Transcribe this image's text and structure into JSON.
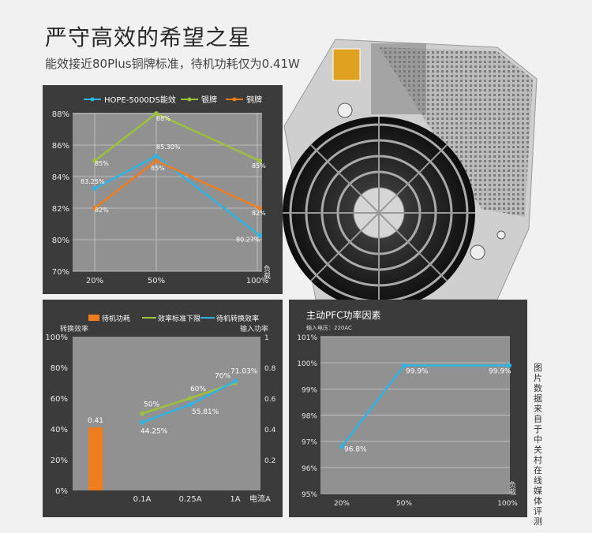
{
  "header": {
    "title": "严守高效的希望之星",
    "subtitle": "能效接近80Plus铜牌标准，待机功耗仅为0.41W"
  },
  "source_note": "图片数据来自于中关村在线媒体评测",
  "colors": {
    "blue": "#2fb4e6",
    "green": "#9cc13a",
    "orange": "#ef7d1e",
    "plot_bg": "#919191",
    "panel_bg": "#3b3b3b"
  },
  "chart_data": [
    {
      "type": "line",
      "categories": [
        "20%",
        "50%",
        "100%"
      ],
      "x_axis_unit": "负载",
      "ylim": [
        70,
        88
      ],
      "y_ticks": [
        "70%",
        "80%",
        "82%",
        "84%",
        "86%",
        "88%"
      ],
      "series": [
        {
          "name": "HOPE-5000DS能效",
          "color": "#2fb4e6",
          "values": [
            83.25,
            85.3,
            80.27
          ],
          "labels": [
            "83.25%",
            "85.30%",
            "80.27%"
          ]
        },
        {
          "name": "银牌",
          "color": "#9cc13a",
          "values": [
            85,
            88,
            85
          ],
          "labels": [
            "85%",
            "88%",
            "85%"
          ]
        },
        {
          "name": "铜牌",
          "color": "#ef7d1e",
          "values": [
            82,
            85,
            82
          ],
          "labels": [
            "82%",
            "85%",
            "82%"
          ]
        }
      ],
      "grid": true,
      "legend_position": "top"
    },
    {
      "type": "bar",
      "categories": [
        "0.1A",
        "0.25A",
        "1A"
      ],
      "x_axis_unit": "电流A",
      "y_left_label": "转换效率",
      "y_right_label": "输入功率",
      "y_left_ticks": [
        "0%",
        "20%",
        "40%",
        "60%",
        "80%",
        "100%"
      ],
      "y_right_ticks": [
        "0.2",
        "0.4",
        "0.6",
        "0.8",
        "1"
      ],
      "ylim_left": [
        0,
        100
      ],
      "ylim_right": [
        0,
        1
      ],
      "bar": {
        "name": "待机功耗",
        "color": "#ef7d1e",
        "value": 0.41,
        "label": "0.41"
      },
      "series": [
        {
          "name": "效率标准下限",
          "color": "#9cc13a",
          "values": [
            50,
            60,
            70
          ],
          "labels": [
            "50%",
            "60%",
            "70%"
          ]
        },
        {
          "name": "待机转换效率",
          "color": "#2fb4e6",
          "values": [
            44.25,
            55.81,
            71.03
          ],
          "labels": [
            "44.25%",
            "55.81%",
            "71.03%"
          ]
        }
      ],
      "legend_position": "top"
    },
    {
      "type": "line",
      "title": "主动PFC功率因素",
      "subtitle": "输入电压：220AC",
      "categories": [
        "20%",
        "50%",
        "100%"
      ],
      "x_axis_unit": "负载",
      "ylim": [
        95,
        101
      ],
      "y_ticks": [
        "95%",
        "96%",
        "97%",
        "98%",
        "99%",
        "100%",
        "101%"
      ],
      "series": [
        {
          "color": "#2fb4e6",
          "values": [
            96.8,
            99.9,
            99.9
          ],
          "labels": [
            "96.8%",
            "99.9%",
            "99.9%"
          ]
        }
      ],
      "grid": true
    }
  ]
}
